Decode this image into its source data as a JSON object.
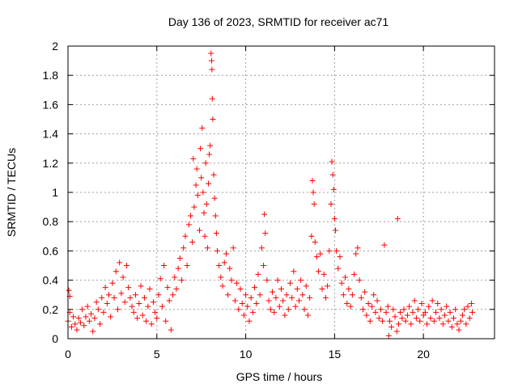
{
  "chart_data": {
    "type": "scatter",
    "title": "Day 136 of 2023, SRMTID for receiver ac71",
    "xlabel": "GPS time / hours",
    "ylabel": "SRMTID / TECUs",
    "xlim": [
      0,
      24
    ],
    "ylim": [
      0,
      2
    ],
    "grid": true,
    "marker": "+",
    "x_ticks": [
      0,
      5,
      10,
      15,
      20
    ],
    "y_ticks": [
      0,
      0.2,
      0.4,
      0.6,
      0.8,
      1,
      1.2,
      1.4,
      1.6,
      1.8,
      2
    ],
    "x_tick_labels": [
      "0",
      "5",
      "10",
      "15",
      "20"
    ],
    "y_tick_labels": [
      "0",
      "0.2",
      "0.4",
      "0.6",
      "0.8",
      "1",
      "1.2",
      "1.4",
      "1.6",
      "1.8",
      "2"
    ],
    "series": [
      {
        "name": "SRMTID",
        "color": "#ff0000",
        "points": [
          [
            0.0,
            0.12
          ],
          [
            0.05,
            0.33
          ],
          [
            0.1,
            0.18
          ],
          [
            0.1,
            0.29
          ],
          [
            0.2,
            0.08
          ],
          [
            0.3,
            0.15
          ],
          [
            0.4,
            0.1
          ],
          [
            0.5,
            0.06
          ],
          [
            0.6,
            0.14
          ],
          [
            0.7,
            0.11
          ],
          [
            0.8,
            0.2
          ],
          [
            0.9,
            0.09
          ],
          [
            1.0,
            0.15
          ],
          [
            1.1,
            0.22
          ],
          [
            1.2,
            0.12
          ],
          [
            1.3,
            0.17
          ],
          [
            1.4,
            0.05
          ],
          [
            1.5,
            0.14
          ],
          [
            1.6,
            0.25
          ],
          [
            1.7,
            0.2
          ],
          [
            1.8,
            0.1
          ],
          [
            1.9,
            0.28
          ],
          [
            2.0,
            0.18
          ],
          [
            2.1,
            0.35
          ],
          [
            2.2,
            0.24
          ],
          [
            2.3,
            0.3
          ],
          [
            2.4,
            0.15
          ],
          [
            2.5,
            0.38
          ],
          [
            2.6,
            0.28
          ],
          [
            2.7,
            0.46
          ],
          [
            2.8,
            0.2
          ],
          [
            2.9,
            0.52
          ],
          [
            3.0,
            0.31
          ],
          [
            3.1,
            0.42
          ],
          [
            3.2,
            0.25
          ],
          [
            3.3,
            0.5
          ],
          [
            3.4,
            0.35
          ],
          [
            3.5,
            0.28
          ],
          [
            3.6,
            0.22
          ],
          [
            3.7,
            0.18
          ],
          [
            3.8,
            0.3
          ],
          [
            3.9,
            0.14
          ],
          [
            4.0,
            0.24
          ],
          [
            4.1,
            0.36
          ],
          [
            4.2,
            0.16
          ],
          [
            4.3,
            0.28
          ],
          [
            4.4,
            0.12
          ],
          [
            4.5,
            0.22
          ],
          [
            4.6,
            0.34
          ],
          [
            4.7,
            0.1
          ],
          [
            4.8,
            0.25
          ],
          [
            4.9,
            0.18
          ],
          [
            5.0,
            0.14
          ],
          [
            5.1,
            0.3
          ],
          [
            5.2,
            0.41
          ],
          [
            5.3,
            0.22
          ],
          [
            5.4,
            0.5
          ],
          [
            5.5,
            0.12
          ],
          [
            5.6,
            0.35
          ],
          [
            5.7,
            0.26
          ],
          [
            5.8,
            0.06
          ],
          [
            5.9,
            0.3
          ],
          [
            6.0,
            0.42
          ],
          [
            6.1,
            0.34
          ],
          [
            6.2,
            0.48
          ],
          [
            6.3,
            0.55
          ],
          [
            6.4,
            0.4
          ],
          [
            6.5,
            0.62
          ],
          [
            6.6,
            0.7
          ],
          [
            6.7,
            0.5
          ],
          [
            6.8,
            0.78
          ],
          [
            6.9,
            0.84
          ],
          [
            7.0,
            0.66
          ],
          [
            7.05,
            1.23
          ],
          [
            7.1,
            0.9
          ],
          [
            7.2,
            1.05
          ],
          [
            7.25,
            1.16
          ],
          [
            7.3,
            0.98
          ],
          [
            7.4,
            0.74
          ],
          [
            7.45,
            1.3
          ],
          [
            7.5,
            1.1
          ],
          [
            7.55,
            1.44
          ],
          [
            7.6,
            1.0
          ],
          [
            7.65,
            0.86
          ],
          [
            7.7,
            0.7
          ],
          [
            7.75,
            1.2
          ],
          [
            7.8,
            0.92
          ],
          [
            7.85,
            0.62
          ],
          [
            7.9,
            1.06
          ],
          [
            7.95,
            1.26
          ],
          [
            8.0,
            1.32
          ],
          [
            8.05,
            1.95
          ],
          [
            8.08,
            1.9
          ],
          [
            8.1,
            1.84
          ],
          [
            8.12,
            1.64
          ],
          [
            8.15,
            1.5
          ],
          [
            8.2,
            1.12
          ],
          [
            8.25,
            0.96
          ],
          [
            8.3,
            0.84
          ],
          [
            8.35,
            0.72
          ],
          [
            8.4,
            0.6
          ],
          [
            8.5,
            0.5
          ],
          [
            8.6,
            0.42
          ],
          [
            8.7,
            0.36
          ],
          [
            8.8,
            0.52
          ],
          [
            8.9,
            0.58
          ],
          [
            9.0,
            0.3
          ],
          [
            9.1,
            0.48
          ],
          [
            9.2,
            0.4
          ],
          [
            9.3,
            0.62
          ],
          [
            9.4,
            0.26
          ],
          [
            9.5,
            0.38
          ],
          [
            9.6,
            0.2
          ],
          [
            9.7,
            0.34
          ],
          [
            9.8,
            0.24
          ],
          [
            9.9,
            0.16
          ],
          [
            10.0,
            0.3
          ],
          [
            10.1,
            0.22
          ],
          [
            10.2,
            0.12
          ],
          [
            10.3,
            0.28
          ],
          [
            10.4,
            0.18
          ],
          [
            10.5,
            0.35
          ],
          [
            10.6,
            0.24
          ],
          [
            10.7,
            0.44
          ],
          [
            10.8,
            0.3
          ],
          [
            10.9,
            0.62
          ],
          [
            11.0,
            0.5
          ],
          [
            11.05,
            0.85
          ],
          [
            11.1,
            0.72
          ],
          [
            11.2,
            0.4
          ],
          [
            11.3,
            0.26
          ],
          [
            11.4,
            0.2
          ],
          [
            11.5,
            0.32
          ],
          [
            11.6,
            0.18
          ],
          [
            11.7,
            0.28
          ],
          [
            11.8,
            0.4
          ],
          [
            11.9,
            0.22
          ],
          [
            12.0,
            0.34
          ],
          [
            12.1,
            0.26
          ],
          [
            12.2,
            0.16
          ],
          [
            12.3,
            0.3
          ],
          [
            12.4,
            0.2
          ],
          [
            12.5,
            0.38
          ],
          [
            12.6,
            0.28
          ],
          [
            12.7,
            0.46
          ],
          [
            12.8,
            0.22
          ],
          [
            12.9,
            0.34
          ],
          [
            13.0,
            0.26
          ],
          [
            13.1,
            0.4
          ],
          [
            13.2,
            0.3
          ],
          [
            13.3,
            0.2
          ],
          [
            13.4,
            0.36
          ],
          [
            13.5,
            0.16
          ],
          [
            13.6,
            0.28
          ],
          [
            13.7,
            0.7
          ],
          [
            13.75,
            1.08
          ],
          [
            13.8,
            1.0
          ],
          [
            13.85,
            0.92
          ],
          [
            13.9,
            0.66
          ],
          [
            14.0,
            0.56
          ],
          [
            14.1,
            0.46
          ],
          [
            14.2,
            0.58
          ],
          [
            14.3,
            0.34
          ],
          [
            14.4,
            0.44
          ],
          [
            14.5,
            0.28
          ],
          [
            14.6,
            0.36
          ],
          [
            14.7,
            0.6
          ],
          [
            14.8,
            0.92
          ],
          [
            14.85,
            1.21
          ],
          [
            14.9,
            1.12
          ],
          [
            14.95,
            1.02
          ],
          [
            15.0,
            0.82
          ],
          [
            15.05,
            0.74
          ],
          [
            15.1,
            0.6
          ],
          [
            15.2,
            0.48
          ],
          [
            15.3,
            0.56
          ],
          [
            15.4,
            0.38
          ],
          [
            15.5,
            0.3
          ],
          [
            15.6,
            0.42
          ],
          [
            15.7,
            0.24
          ],
          [
            15.8,
            0.34
          ],
          [
            15.9,
            0.22
          ],
          [
            16.0,
            0.3
          ],
          [
            16.1,
            0.44
          ],
          [
            16.2,
            0.58
          ],
          [
            16.3,
            0.62
          ],
          [
            16.4,
            0.4
          ],
          [
            16.5,
            0.28
          ],
          [
            16.6,
            0.2
          ],
          [
            16.7,
            0.32
          ],
          [
            16.8,
            0.16
          ],
          [
            16.9,
            0.24
          ],
          [
            17.0,
            0.12
          ],
          [
            17.1,
            0.22
          ],
          [
            17.2,
            0.3
          ],
          [
            17.3,
            0.18
          ],
          [
            17.4,
            0.26
          ],
          [
            17.5,
            0.14
          ],
          [
            17.6,
            0.2
          ],
          [
            17.7,
            0.12
          ],
          [
            17.8,
            0.64
          ],
          [
            17.9,
            0.18
          ],
          [
            18.0,
            0.22
          ],
          [
            18.05,
            0.02
          ],
          [
            18.1,
            0.12
          ],
          [
            18.2,
            0.08
          ],
          [
            18.3,
            0.2
          ],
          [
            18.4,
            0.15
          ],
          [
            18.5,
            0.05
          ],
          [
            18.55,
            0.82
          ],
          [
            18.6,
            0.1
          ],
          [
            18.7,
            0.18
          ],
          [
            18.8,
            0.14
          ],
          [
            18.9,
            0.2
          ],
          [
            19.0,
            0.12
          ],
          [
            19.1,
            0.16
          ],
          [
            19.2,
            0.22
          ],
          [
            19.3,
            0.1
          ],
          [
            19.4,
            0.18
          ],
          [
            19.5,
            0.26
          ],
          [
            19.6,
            0.14
          ],
          [
            19.7,
            0.2
          ],
          [
            19.8,
            0.12
          ],
          [
            19.9,
            0.24
          ],
          [
            20.0,
            0.16
          ],
          [
            20.1,
            0.18
          ],
          [
            20.2,
            0.1
          ],
          [
            20.3,
            0.22
          ],
          [
            20.4,
            0.14
          ],
          [
            20.5,
            0.26
          ],
          [
            20.6,
            0.12
          ],
          [
            20.7,
            0.18
          ],
          [
            20.8,
            0.24
          ],
          [
            20.9,
            0.14
          ],
          [
            21.0,
            0.2
          ],
          [
            21.1,
            0.1
          ],
          [
            21.2,
            0.16
          ],
          [
            21.3,
            0.22
          ],
          [
            21.4,
            0.12
          ],
          [
            21.5,
            0.18
          ],
          [
            21.6,
            0.08
          ],
          [
            21.7,
            0.14
          ],
          [
            21.8,
            0.2
          ],
          [
            21.9,
            0.1
          ],
          [
            22.0,
            0.06
          ],
          [
            22.1,
            0.12
          ],
          [
            22.2,
            0.16
          ],
          [
            22.3,
            0.2
          ],
          [
            22.4,
            0.1
          ],
          [
            22.5,
            0.22
          ],
          [
            22.6,
            0.14
          ],
          [
            22.7,
            0.24
          ],
          [
            22.75,
            0.18
          ]
        ]
      }
    ]
  }
}
